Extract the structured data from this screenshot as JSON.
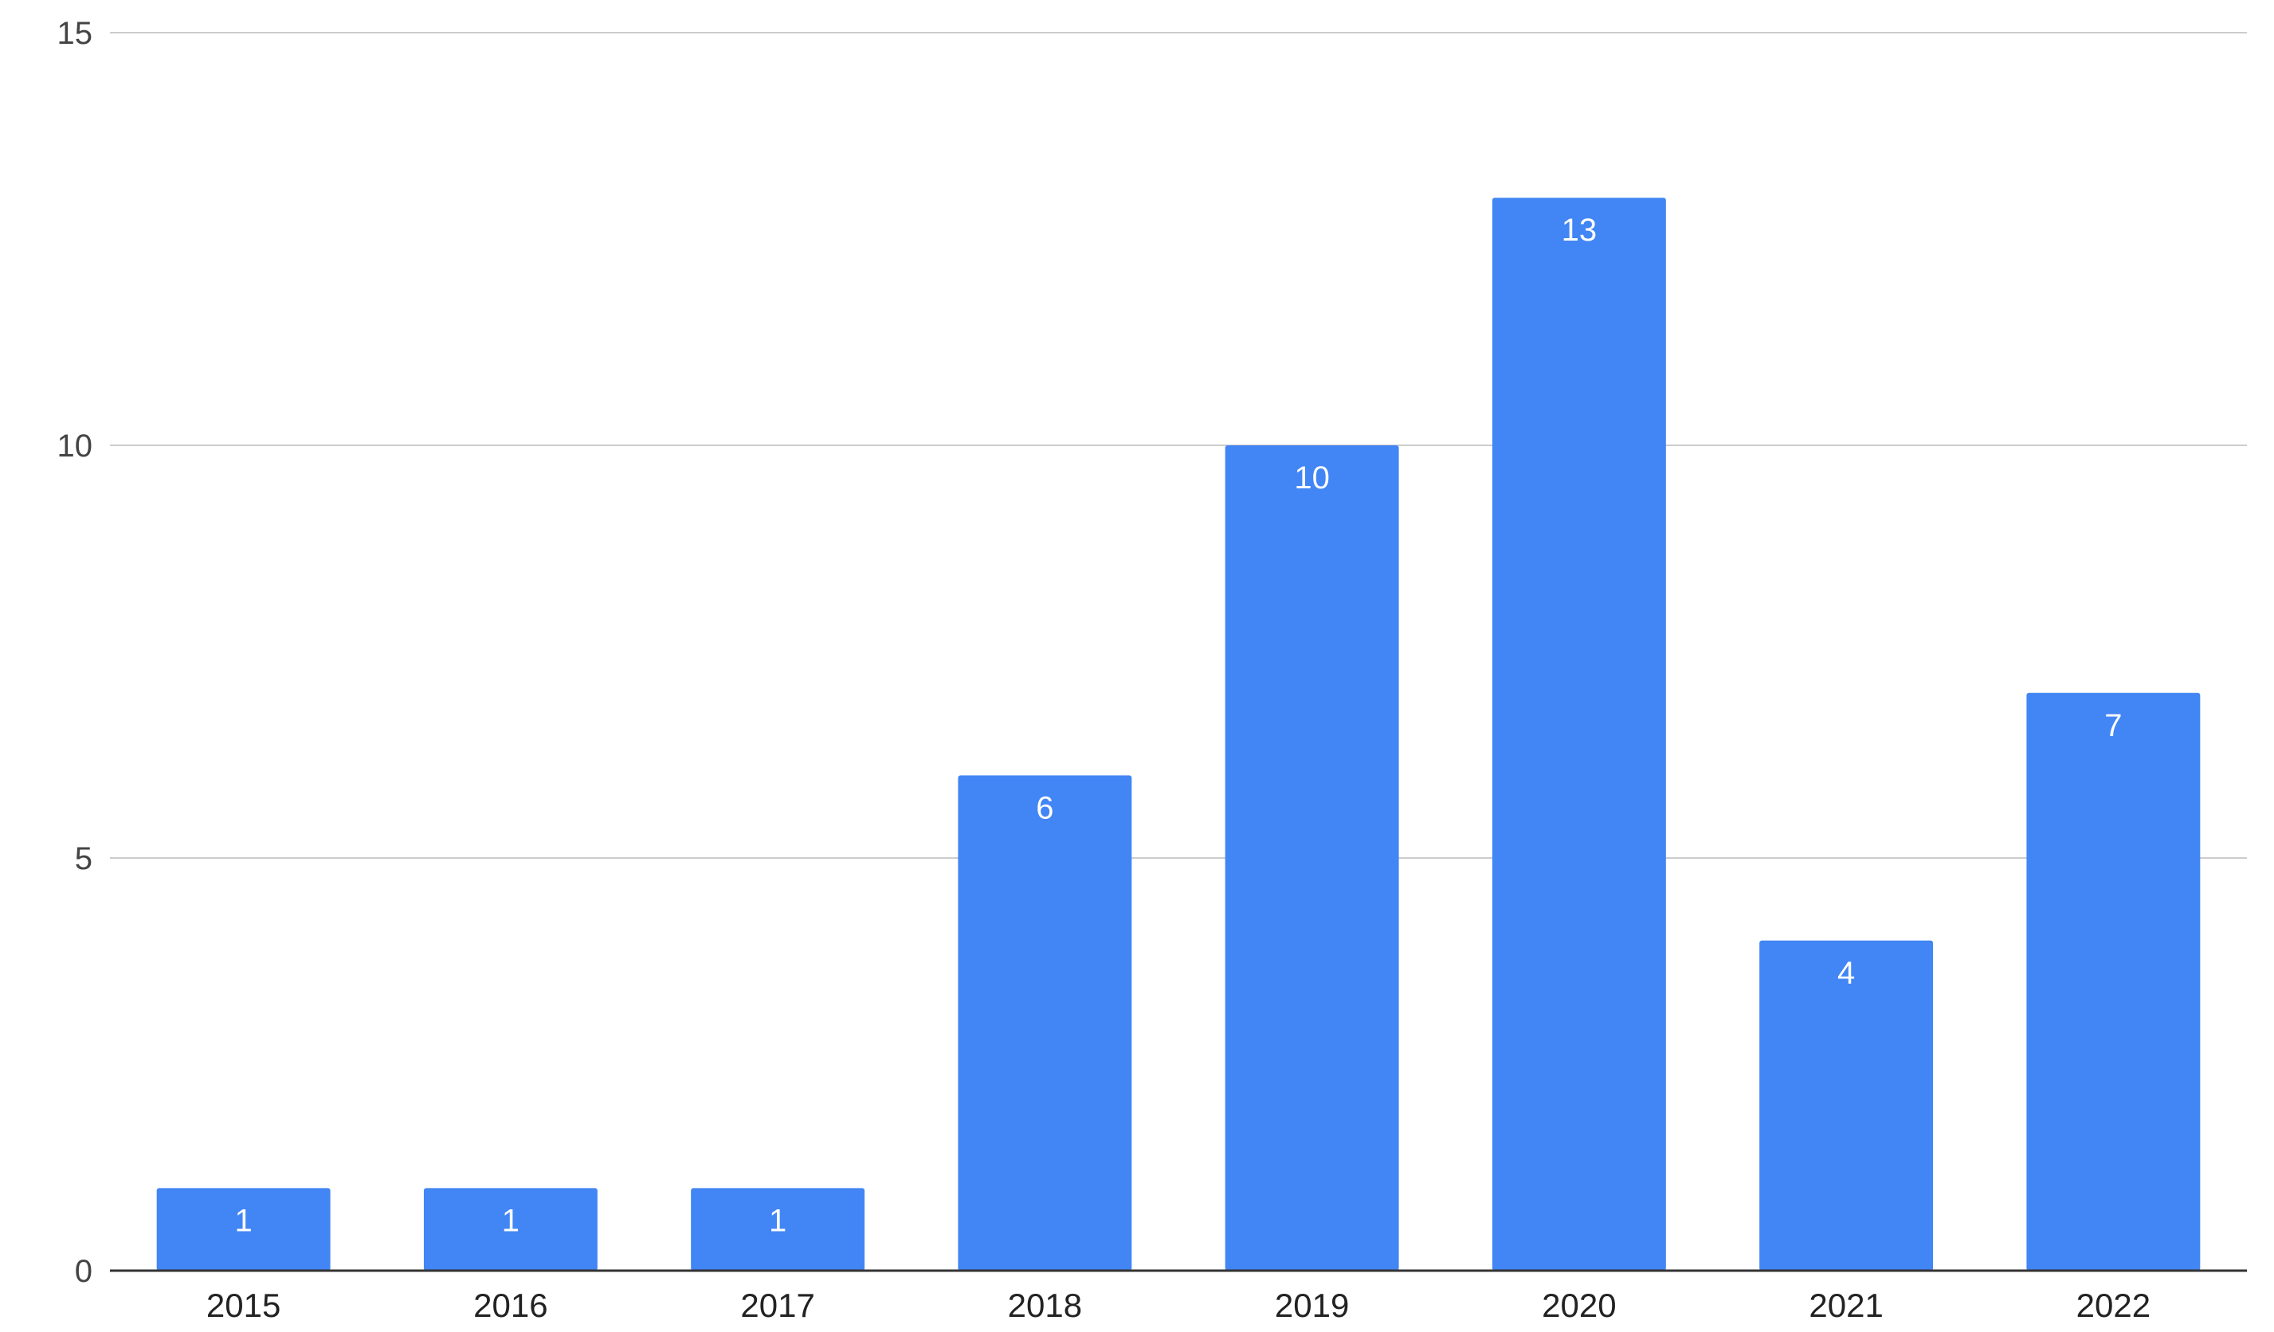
{
  "chart_data": {
    "type": "bar",
    "title": "",
    "xlabel": "",
    "ylabel": "",
    "categories": [
      "2015",
      "2016",
      "2017",
      "2018",
      "2019",
      "2020",
      "2021",
      "2022"
    ],
    "series": [
      {
        "values": [
          1,
          1,
          1,
          6,
          10,
          13,
          4,
          7
        ],
        "color": "#4285f4"
      }
    ],
    "ylim": [
      0,
      15
    ],
    "yticks": [
      0,
      5,
      10,
      15
    ],
    "grid": true,
    "legend": "none",
    "data_labels": true,
    "colors": {
      "bar": "#4285f4",
      "gridline": "#cccccc",
      "axis": "#333333",
      "data_label": "#ffffff"
    }
  }
}
